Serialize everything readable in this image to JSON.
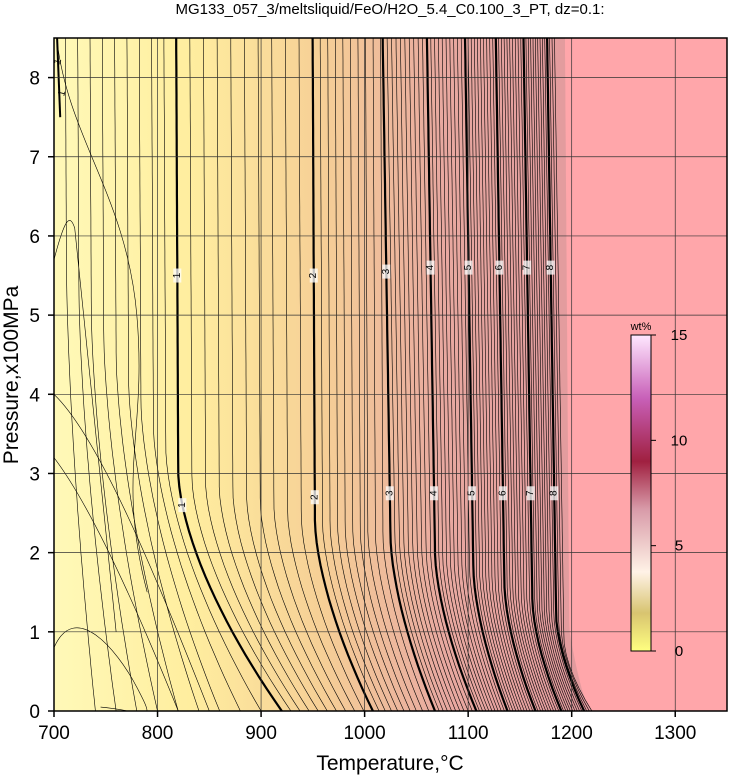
{
  "chart_data": {
    "type": "contour",
    "title": "MG133_057_3/meltsliquid/FeO/H2O_5.4_C0.100_3_PT, dz=0.1:",
    "xlabel": "Temperature,°C",
    "ylabel": "Pressure,x100MPa",
    "xlim": [
      700,
      1350
    ],
    "ylim": [
      0,
      8.5
    ],
    "x_ticks": [
      700,
      800,
      900,
      1000,
      1100,
      1200,
      1300
    ],
    "y_ticks": [
      0,
      1,
      2,
      3,
      4,
      5,
      6,
      7,
      8
    ],
    "grid": true,
    "contour_interval": 0.1,
    "labeled_contours": [
      {
        "level": 1,
        "label": "1",
        "temperature_at_low_p": 820,
        "bend_start_p": 3.0,
        "temperature_at_zero_p": 920,
        "labels_at_p": [
          5.5,
          2.6
        ]
      },
      {
        "level": 2,
        "label": "2",
        "temperature_at_low_p": 952,
        "bend_start_p": 2.4,
        "temperature_at_zero_p": 1008,
        "labels_at_p": [
          5.5,
          2.7
        ]
      },
      {
        "level": 3,
        "label": "3",
        "temperature_at_low_p": 1025,
        "bend_start_p": 2.2,
        "temperature_at_zero_p": 1068,
        "labels_at_p": [
          5.55,
          2.75
        ]
      },
      {
        "level": 4,
        "label": "4",
        "temperature_at_low_p": 1068,
        "bend_start_p": 2.0,
        "temperature_at_zero_p": 1108,
        "labels_at_p": [
          5.6,
          2.75
        ]
      },
      {
        "level": 5,
        "label": "5",
        "temperature_at_low_p": 1105,
        "bend_start_p": 1.8,
        "temperature_at_zero_p": 1138,
        "labels_at_p": [
          5.6,
          2.75
        ]
      },
      {
        "level": 6,
        "label": "6",
        "temperature_at_low_p": 1135,
        "bend_start_p": 1.6,
        "temperature_at_zero_p": 1165,
        "labels_at_p": [
          5.6,
          2.75
        ]
      },
      {
        "level": 7,
        "label": "7",
        "temperature_at_low_p": 1162,
        "bend_start_p": 1.4,
        "temperature_at_zero_p": 1190,
        "labels_at_p": [
          5.6,
          2.75
        ]
      },
      {
        "level": 8,
        "label": "8",
        "temperature_at_low_p": 1185,
        "bend_start_p": 1.2,
        "temperature_at_zero_p": 1212,
        "labels_at_p": [
          5.6,
          2.75
        ]
      }
    ],
    "top_left_labels": [
      "1",
      "1"
    ],
    "liquidus_boundary": {
      "temperature_at_zero_p": 1220,
      "temperature_at_top": 1195
    },
    "colorbar": {
      "unit": "wt%",
      "ticks": [
        0,
        5,
        10,
        15
      ],
      "range": [
        0,
        15
      ],
      "colors": [
        "#fff68f",
        "#fff0dc",
        "#ffffff",
        "#d8a0b0",
        "#a52a52",
        "#d060c0",
        "#ffffff"
      ]
    },
    "colors": {
      "low_fill": "#fff8b0",
      "mid_fill": "#f6c894",
      "high_fill": "#e6a2a0",
      "background_red": "#ffa6aa"
    }
  }
}
